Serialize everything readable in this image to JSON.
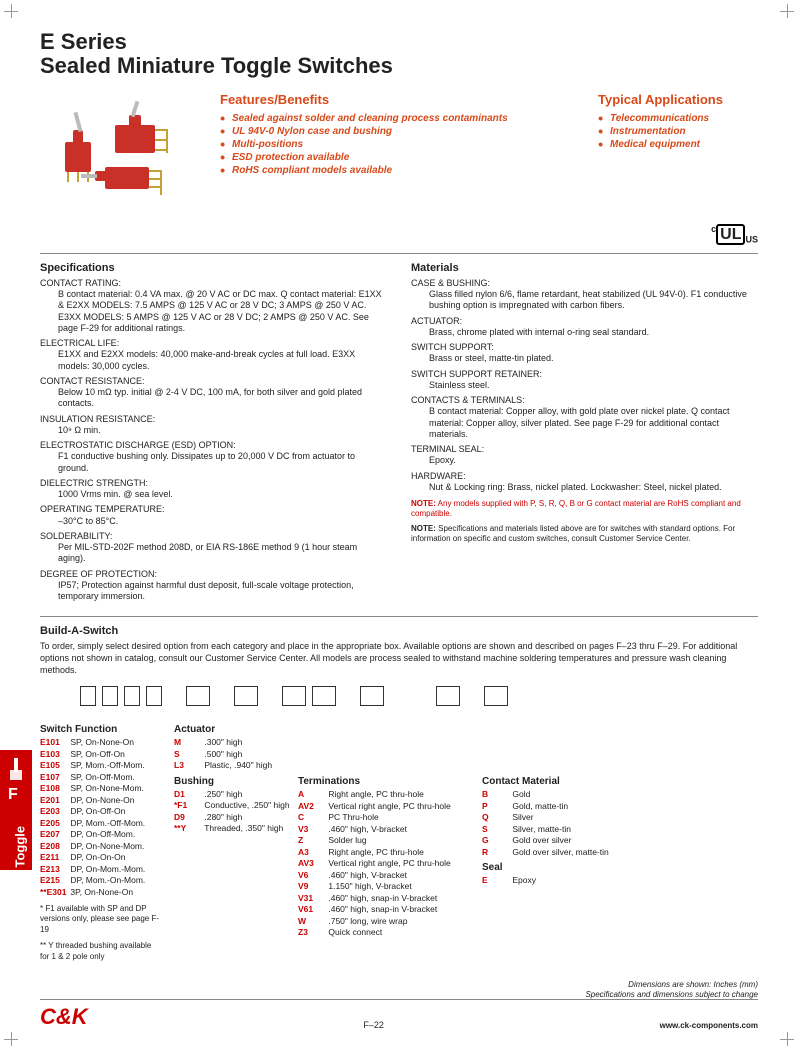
{
  "title_line1": "E Series",
  "title_line2": "Sealed Miniature Toggle Switches",
  "features_heading": "Features/Benefits",
  "features": [
    "Sealed against solder and cleaning process contaminants",
    "UL 94V-0 Nylon case and bushing",
    "Multi-positions",
    "ESD protection available",
    "RoHS compliant models available"
  ],
  "apps_heading": "Typical Applications",
  "apps": [
    "Telecommunications",
    "Instrumentation",
    "Medical equipment"
  ],
  "cert_text": "c UL us",
  "specs_heading": "Specifications",
  "specs": [
    {
      "label": "CONTACT RATING:",
      "body": " B contact material: 0.4 VA max. @ 20 V AC or DC max. Q contact material: E1XX & E2XX MODELS: 7.5 AMPS @ 125 V AC or 28 V DC; 3 AMPS @ 250 V AC. E3XX MODELS: 5 AMPS @ 125 V AC or 28 V DC; 2 AMPS @ 250 V AC. See page F-29 for additional ratings."
    },
    {
      "label": "ELECTRICAL LIFE:",
      "body": " E1XX and E2XX models: 40,000 make-and-break cycles at full load. E3XX models: 30,000 cycles."
    },
    {
      "label": "CONTACT RESISTANCE:",
      "body": " Below 10 mΩ typ. initial @ 2-4 V DC, 100 mA, for both silver and gold plated contacts."
    },
    {
      "label": "INSULATION RESISTANCE:",
      "body": " 10⁹ Ω min."
    },
    {
      "label": "ELECTROSTATIC DISCHARGE (ESD) OPTION:",
      "body": " F1 conductive bushing only. Dissipates up to 20,000 V DC from actuator to ground."
    },
    {
      "label": "DIELECTRIC STRENGTH:",
      "body": " 1000 Vrms min. @ sea level."
    },
    {
      "label": "OPERATING TEMPERATURE:",
      "body": " –30°C to 85°C."
    },
    {
      "label": "SOLDERABILITY:",
      "body": " Per MIL-STD-202F method 208D, or EIA RS-186E method 9 (1 hour steam aging)."
    },
    {
      "label": "DEGREE OF PROTECTION:",
      "body": " IP57; Protection against harmful dust deposit, full-scale voltage protection, temporary immersion."
    }
  ],
  "materials_heading": "Materials",
  "materials": [
    {
      "label": "CASE & BUSHING:",
      "body": " Glass filled nylon 6/6, flame retardant, heat stabilized (UL 94V-0). F1 conductive bushing option is impregnated with carbon fibers."
    },
    {
      "label": "ACTUATOR:",
      "body": " Brass, chrome plated with internal o-ring seal standard."
    },
    {
      "label": "SWITCH SUPPORT:",
      "body": " Brass or steel, matte-tin plated."
    },
    {
      "label": "SWITCH SUPPORT RETAINER:",
      "body": " Stainless steel."
    },
    {
      "label": "CONTACTS & TERMINALS:",
      "body": " B contact material: Copper alloy, with gold plate over nickel plate. Q contact material: Copper alloy, silver plated. See page F-29 for additional contact materials."
    },
    {
      "label": "TERMINAL SEAL:",
      "body": " Epoxy."
    },
    {
      "label": "HARDWARE:",
      "body": " Nut & Locking ring: Brass, nickel plated. Lockwasher: Steel, nickel plated."
    }
  ],
  "note1_label": "NOTE:",
  "note1_body": " Any models supplied with P, S, R, Q, B or G contact material are RoHS compliant and compatible.",
  "note2_label": "NOTE:",
  "note2_body": " Specifications and materials listed above are for switches with standard options. For information on specific and custom switches, consult Customer Service Center.",
  "build_heading": "Build-A-Switch",
  "build_intro": "To order, simply select desired option from each category and place in the appropriate box. Available options are shown and described on pages F–23 thru F–29. For additional options not shown in catalog, consult our Customer Service Center. All models are process sealed to withstand machine soldering temperatures and pressure wash cleaning methods.",
  "switch_function_heading": "Switch Function",
  "switch_functions": [
    {
      "code": "E101",
      "desc": "SP, On-None-On"
    },
    {
      "code": "E103",
      "desc": "SP, On-Off-On"
    },
    {
      "code": "E105",
      "desc": "SP, Mom.-Off-Mom."
    },
    {
      "code": "E107",
      "desc": "SP, On-Off-Mom."
    },
    {
      "code": "E108",
      "desc": "SP, On-None-Mom."
    },
    {
      "code": "E201",
      "desc": "DP, On-None-On"
    },
    {
      "code": "E203",
      "desc": "DP, On-Off-On"
    },
    {
      "code": "E205",
      "desc": "DP, Mom.-Off-Mom."
    },
    {
      "code": "E207",
      "desc": "DP, On-Off-Mom."
    },
    {
      "code": "E208",
      "desc": "DP, On-None-Mom."
    },
    {
      "code": "E211",
      "desc": "DP, On-On-On"
    },
    {
      "code": "E213",
      "desc": "DP, On-Mom.-Mom."
    },
    {
      "code": "E215",
      "desc": "DP, Mom.-On-Mom."
    },
    {
      "code": "**E301",
      "desc": "3P, On-None-On"
    }
  ],
  "actuator_heading": "Actuator",
  "actuators": [
    {
      "code": "M",
      "desc": ".300\" high"
    },
    {
      "code": "S",
      "desc": ".500\" high"
    },
    {
      "code": "L3",
      "desc": "Plastic, .940\" high"
    }
  ],
  "bushing_heading": "Bushing",
  "bushings": [
    {
      "code": "D1",
      "desc": ".250\" high"
    },
    {
      "code": "*F1",
      "desc": "Conductive, .250\" high"
    },
    {
      "code": "D9",
      "desc": ".280\" high"
    },
    {
      "code": "**Y",
      "desc": "Threaded, .350\" high"
    }
  ],
  "terminations_heading": "Terminations",
  "terminations": [
    {
      "code": "A",
      "desc": "Right angle, PC thru-hole"
    },
    {
      "code": "AV2",
      "desc": "Vertical right angle, PC thru-hole"
    },
    {
      "code": "C",
      "desc": "PC Thru-hole"
    },
    {
      "code": "V3",
      "desc": ".460\" high, V-bracket"
    },
    {
      "code": "Z",
      "desc": "Solder lug"
    },
    {
      "code": "A3",
      "desc": "Right angle, PC thru-hole"
    },
    {
      "code": "AV3",
      "desc": "Vertical right angle, PC thru-hole"
    },
    {
      "code": "V6",
      "desc": ".460\" high, V-bracket"
    },
    {
      "code": "V9",
      "desc": "1.150\" high, V-bracket"
    },
    {
      "code": "V31",
      "desc": ".460\" high, snap-in V-bracket"
    },
    {
      "code": "V61",
      "desc": ".460\" high, snap-in V-bracket"
    },
    {
      "code": "W",
      "desc": ".750\" long, wire wrap"
    },
    {
      "code": "Z3",
      "desc": "Quick connect"
    }
  ],
  "contact_heading": "Contact Material",
  "contacts": [
    {
      "code": "B",
      "desc": "Gold"
    },
    {
      "code": "P",
      "desc": "Gold, matte-tin"
    },
    {
      "code": "Q",
      "desc": "Silver"
    },
    {
      "code": "S",
      "desc": "Silver, matte-tin"
    },
    {
      "code": "G",
      "desc": "Gold over silver"
    },
    {
      "code": "R",
      "desc": "Gold over silver, matte-tin"
    }
  ],
  "seal_heading": "Seal",
  "seals": [
    {
      "code": "E",
      "desc": "Epoxy"
    }
  ],
  "footnote1": "* F1 available with SP and DP versions only, please see page F-19",
  "footnote2": "** Y threaded bushing available for 1 & 2 pole only",
  "side_tab_letter": "F",
  "side_tab_text": "Toggle",
  "logo_text": "C&K",
  "page_num": "F–22",
  "dims_text1": "Dimensions are shown: Inches (mm)",
  "dims_text2": "Specifications and dimensions subject to change",
  "url": "www.ck-components.com"
}
